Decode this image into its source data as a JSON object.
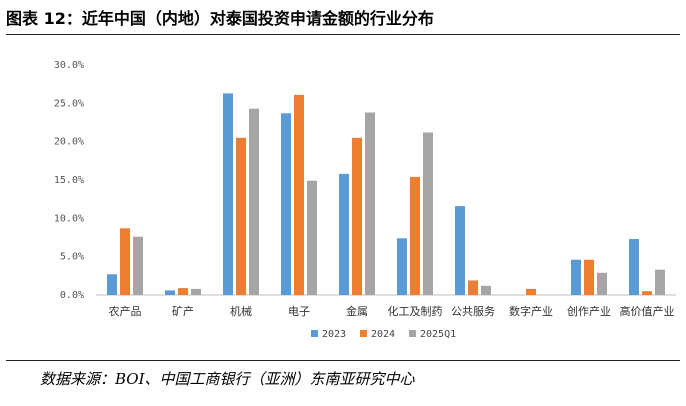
{
  "page": {
    "title": "图表 12：近年中国（内地）对泰国投资申请金额的行业分布",
    "source": "数据来源：BOI、中国工商银行（亚洲）东南亚研究中心"
  },
  "chart_data": {
    "type": "bar",
    "title": "",
    "xlabel": "",
    "ylabel": "",
    "ylim": [
      0,
      30
    ],
    "y_ticks": [
      "0.0%",
      "5.0%",
      "10.0%",
      "15.0%",
      "20.0%",
      "25.0%",
      "30.0%"
    ],
    "grid": false,
    "legend_position": "bottom",
    "categories": [
      "农产品",
      "矿产",
      "机械",
      "电子",
      "金属",
      "化工及制药",
      "公共服务",
      "数字产业",
      "创作产业",
      "高价值产业"
    ],
    "series": [
      {
        "name": "2023",
        "color": "#5B9BD5",
        "values": [
          2.7,
          0.6,
          26.3,
          23.7,
          15.8,
          7.4,
          11.6,
          0.0,
          4.6,
          7.3
        ]
      },
      {
        "name": "2024",
        "color": "#ED7D31",
        "values": [
          8.7,
          0.9,
          20.5,
          26.1,
          20.5,
          15.4,
          1.9,
          0.8,
          4.6,
          0.5
        ]
      },
      {
        "name": "2025Q1",
        "color": "#A5A5A5",
        "values": [
          7.6,
          0.8,
          24.3,
          14.9,
          23.8,
          21.2,
          1.2,
          0.0,
          2.9,
          3.3
        ]
      }
    ]
  }
}
